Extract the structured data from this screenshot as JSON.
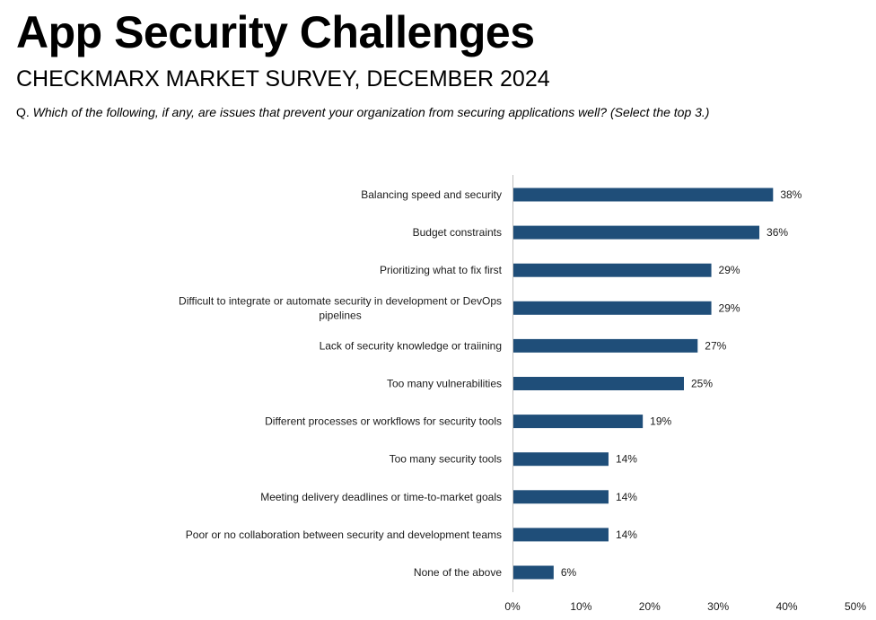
{
  "header": {
    "title": "App Security Challenges",
    "subtitle": "CHECKMARX MARKET SURVEY, DECEMBER 2024",
    "question_prefix": "Q.",
    "question_text": "Which of the following, if any, are issues that prevent your organization from securing applications well? (Select the top 3.)"
  },
  "chart_data": {
    "type": "bar",
    "orientation": "horizontal",
    "categories": [
      [
        "Balancing speed and security"
      ],
      [
        "Budget constraints"
      ],
      [
        "Prioritizing what to fix first"
      ],
      [
        "Difficult to integrate or automate security in development or DevOps",
        "pipelines"
      ],
      [
        "Lack of security knowledge or traiining"
      ],
      [
        "Too many vulnerabilities"
      ],
      [
        "Different processes or workflows for security tools"
      ],
      [
        "Too many security tools"
      ],
      [
        "Meeting delivery deadlines or time-to-market goals"
      ],
      [
        "Poor or no collaboration between security and development teams"
      ],
      [
        "None of the above"
      ]
    ],
    "values": [
      38,
      36,
      29,
      29,
      27,
      25,
      19,
      14,
      14,
      14,
      6
    ],
    "value_labels": [
      "38%",
      "36%",
      "29%",
      "29%",
      "27%",
      "25%",
      "19%",
      "14%",
      "14%",
      "14%",
      "6%"
    ],
    "xlim": [
      0,
      50
    ],
    "xticks": [
      0,
      10,
      20,
      30,
      40,
      50
    ],
    "xtick_labels": [
      "0%",
      "10%",
      "20%",
      "30%",
      "40%",
      "50%"
    ],
    "grid": false,
    "bar_color": "#1f4e79"
  }
}
